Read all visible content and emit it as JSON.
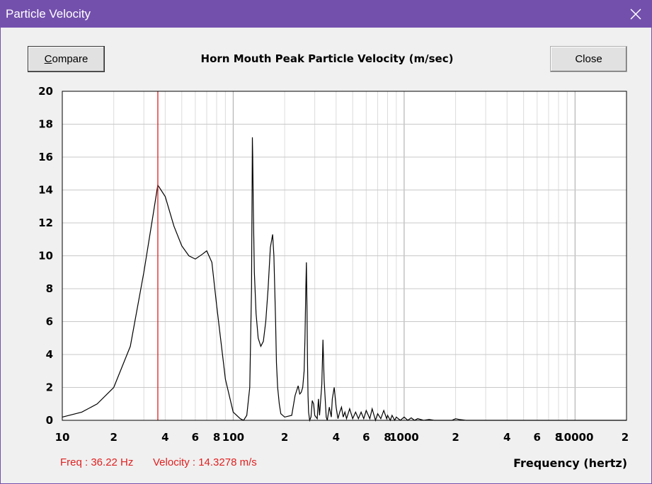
{
  "window": {
    "title": "Particle Velocity",
    "titlebar_color": "#7450ad"
  },
  "toolbar": {
    "compare_prefix": "",
    "compare_underlined": "C",
    "compare_rest": "ompare",
    "close_label": "Close"
  },
  "readout": {
    "freq": "Freq : 36.22 Hz",
    "velocity": "Velocity : 14.3278 m/s"
  },
  "chart_data": {
    "type": "line",
    "title": "Horn Mouth Peak Particle Velocity (m/sec)",
    "xlabel": "Frequency (hertz)",
    "ylabel": "",
    "xscale": "log",
    "xlim": [
      10,
      20000
    ],
    "ylim": [
      0,
      20
    ],
    "yticks": [
      "0",
      "2",
      "4",
      "6",
      "8",
      "10",
      "12",
      "14",
      "16",
      "18",
      "20"
    ],
    "xticks": [
      {
        "v": 10,
        "label": "10"
      },
      {
        "v": 20,
        "label": "2"
      },
      {
        "v": 40,
        "label": "4"
      },
      {
        "v": 60,
        "label": "6"
      },
      {
        "v": 80,
        "label": "8"
      },
      {
        "v": 100,
        "label": "100"
      },
      {
        "v": 200,
        "label": "2"
      },
      {
        "v": 400,
        "label": "4"
      },
      {
        "v": 600,
        "label": "6"
      },
      {
        "v": 800,
        "label": "8"
      },
      {
        "v": 1000,
        "label": "1000"
      },
      {
        "v": 2000,
        "label": "2"
      },
      {
        "v": 4000,
        "label": "4"
      },
      {
        "v": 6000,
        "label": "6"
      },
      {
        "v": 8000,
        "label": "8"
      },
      {
        "v": 10000,
        "label": "10000"
      },
      {
        "v": 20000,
        "label": "2"
      }
    ],
    "grid": true,
    "cursor_x": 36.22,
    "cursor_color": "#e02020",
    "line_color": "#000000",
    "series": [
      {
        "x": [
          10,
          13,
          16,
          20,
          25,
          30,
          34,
          36.2,
          40,
          45,
          50,
          55,
          60,
          66,
          70,
          75,
          80,
          90,
          100,
          110,
          115,
          120,
          125,
          128,
          129.5,
          130,
          131,
          133,
          136,
          140,
          145,
          150,
          155,
          160,
          165,
          170,
          173,
          175,
          177,
          179,
          182,
          186,
          190,
          200,
          220,
          230,
          240,
          245,
          250,
          255,
          260,
          263,
          266,
          268,
          270,
          272,
          274,
          276,
          280,
          285,
          290,
          295,
          300,
          310,
          315,
          320,
          330,
          335,
          340,
          350,
          355,
          365,
          375,
          380,
          390,
          400,
          410,
          420,
          430,
          440,
          450,
          460,
          480,
          500,
          520,
          540,
          560,
          580,
          600,
          630,
          650,
          680,
          700,
          730,
          760,
          790,
          800,
          830,
          850,
          880,
          900,
          950,
          1000,
          1050,
          1100,
          1150,
          1200,
          1300,
          1400,
          1500,
          1700,
          1900,
          2000,
          2100,
          2300,
          2500,
          20000
        ],
        "y": [
          0.2,
          0.5,
          1.0,
          2.0,
          4.5,
          9.0,
          12.5,
          14.3,
          13.6,
          11.8,
          10.6,
          10.0,
          9.8,
          10.1,
          10.3,
          9.6,
          7.0,
          2.5,
          0.5,
          0.1,
          0.0,
          0.3,
          2.0,
          8.0,
          17.2,
          16.0,
          13.0,
          9.0,
          6.5,
          5.0,
          4.5,
          4.8,
          6.0,
          8.0,
          10.5,
          11.3,
          10.0,
          8.0,
          6.0,
          3.5,
          2.0,
          1.0,
          0.4,
          0.2,
          0.3,
          1.5,
          2.1,
          1.6,
          1.7,
          2.0,
          3.0,
          5.0,
          8.0,
          9.6,
          7.0,
          3.5,
          1.5,
          0.5,
          0.0,
          0.2,
          1.2,
          1.0,
          0.3,
          0.1,
          1.3,
          0.3,
          2.2,
          4.9,
          2.5,
          0.2,
          0.0,
          0.8,
          0.2,
          1.3,
          2.0,
          0.8,
          0.1,
          0.5,
          0.8,
          0.2,
          0.5,
          0.1,
          0.7,
          0.1,
          0.5,
          0.1,
          0.5,
          0.1,
          0.6,
          0.1,
          0.7,
          0.0,
          0.4,
          0.1,
          0.6,
          0.1,
          0.3,
          0.0,
          0.3,
          0.0,
          0.2,
          0.0,
          0.2,
          0.0,
          0.15,
          0.0,
          0.1,
          0.0,
          0.05,
          0.0,
          0.0,
          0.0,
          0.1,
          0.05,
          0.0,
          0.0,
          0.0
        ]
      }
    ]
  }
}
